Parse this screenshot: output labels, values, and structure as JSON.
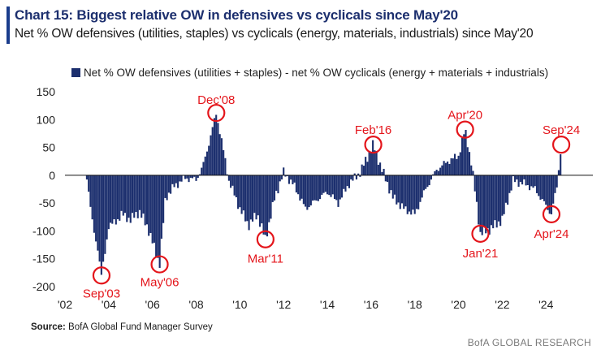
{
  "header": {
    "title": "Chart 15: Biggest relative OW in defensives vs cyclicals since May'20",
    "subtitle": "Net % OW defensives (utilities, staples) vs cyclicals (energy, materials, industrials) since May'20"
  },
  "footer": {
    "source_label": "Source:",
    "source_text": "BofA Global Fund Manager Survey",
    "brand": "BofA GLOBAL RESEARCH"
  },
  "colors": {
    "bar": "#1c2f6e",
    "annotation": "#e4151b",
    "title": "#1c2f6e"
  },
  "chart_data": {
    "type": "bar",
    "legend": "Net % OW defensives (utilities + staples) - net % OW cyclicals (energy + materials + industrials)",
    "legend_position": "top",
    "ylim": [
      -200,
      150
    ],
    "yticks": [
      150,
      100,
      50,
      0,
      -50,
      -100,
      -150,
      -200
    ],
    "xlim": [
      2002,
      2025.7
    ],
    "xticks": [
      "'02",
      "'04",
      "'06",
      "'08",
      "'10",
      "'12",
      "'14",
      "'16",
      "'18",
      "'20",
      "'22",
      "'24"
    ],
    "series": [
      {
        "values_by_date": [
          {
            "x": 2003.0,
            "y": -5
          },
          {
            "x": 2003.1,
            "y": -30
          },
          {
            "x": 2003.2,
            "y": -70
          },
          {
            "x": 2003.35,
            "y": -110
          },
          {
            "x": 2003.5,
            "y": -130
          },
          {
            "x": 2003.67,
            "y": -180
          },
          {
            "x": 2003.8,
            "y": -150
          },
          {
            "x": 2004.0,
            "y": -90
          },
          {
            "x": 2004.3,
            "y": -85
          },
          {
            "x": 2004.6,
            "y": -70
          },
          {
            "x": 2005.0,
            "y": -80
          },
          {
            "x": 2005.4,
            "y": -65
          },
          {
            "x": 2005.8,
            "y": -95
          },
          {
            "x": 2006.0,
            "y": -120
          },
          {
            "x": 2006.33,
            "y": -160
          },
          {
            "x": 2006.6,
            "y": -40
          },
          {
            "x": 2007.0,
            "y": -20
          },
          {
            "x": 2007.5,
            "y": -5
          },
          {
            "x": 2008.0,
            "y": -8
          },
          {
            "x": 2008.3,
            "y": 15
          },
          {
            "x": 2008.6,
            "y": 60
          },
          {
            "x": 2008.92,
            "y": 112
          },
          {
            "x": 2009.2,
            "y": 55
          },
          {
            "x": 2009.5,
            "y": -10
          },
          {
            "x": 2010.0,
            "y": -60
          },
          {
            "x": 2010.4,
            "y": -90
          },
          {
            "x": 2010.8,
            "y": -70
          },
          {
            "x": 2011.17,
            "y": -115
          },
          {
            "x": 2011.6,
            "y": -40
          },
          {
            "x": 2012.0,
            "y": 5
          },
          {
            "x": 2012.5,
            "y": -20
          },
          {
            "x": 2013.0,
            "y": -60
          },
          {
            "x": 2013.5,
            "y": -45
          },
          {
            "x": 2014.0,
            "y": -30
          },
          {
            "x": 2014.5,
            "y": -50
          },
          {
            "x": 2015.0,
            "y": -15
          },
          {
            "x": 2015.5,
            "y": 5
          },
          {
            "x": 2016.1,
            "y": 55
          },
          {
            "x": 2016.5,
            "y": 10
          },
          {
            "x": 2017.0,
            "y": -40
          },
          {
            "x": 2017.5,
            "y": -60
          },
          {
            "x": 2018.0,
            "y": -70
          },
          {
            "x": 2018.5,
            "y": -25
          },
          {
            "x": 2019.0,
            "y": 10
          },
          {
            "x": 2019.5,
            "y": 25
          },
          {
            "x": 2020.0,
            "y": 35
          },
          {
            "x": 2020.3,
            "y": 82
          },
          {
            "x": 2020.6,
            "y": 20
          },
          {
            "x": 2021.0,
            "y": -105
          },
          {
            "x": 2021.5,
            "y": -95
          },
          {
            "x": 2022.0,
            "y": -80
          },
          {
            "x": 2022.5,
            "y": -10
          },
          {
            "x": 2023.0,
            "y": -15
          },
          {
            "x": 2023.5,
            "y": -25
          },
          {
            "x": 2024.25,
            "y": -70
          },
          {
            "x": 2024.5,
            "y": -20
          },
          {
            "x": 2024.7,
            "y": 55
          }
        ]
      }
    ],
    "annotations": [
      {
        "label": "Sep'03",
        "x": 2003.67,
        "y": -180
      },
      {
        "label": "May'06",
        "x": 2006.33,
        "y": -160
      },
      {
        "label": "Dec'08",
        "x": 2008.92,
        "y": 112
      },
      {
        "label": "Mar'11",
        "x": 2011.17,
        "y": -115
      },
      {
        "label": "Feb'16",
        "x": 2016.1,
        "y": 55
      },
      {
        "label": "Apr'20",
        "x": 2020.3,
        "y": 82
      },
      {
        "label": "Jan'21",
        "x": 2021.0,
        "y": -105
      },
      {
        "label": "Apr'24",
        "x": 2024.25,
        "y": -70
      },
      {
        "label": "Sep'24",
        "x": 2024.7,
        "y": 55
      }
    ]
  }
}
